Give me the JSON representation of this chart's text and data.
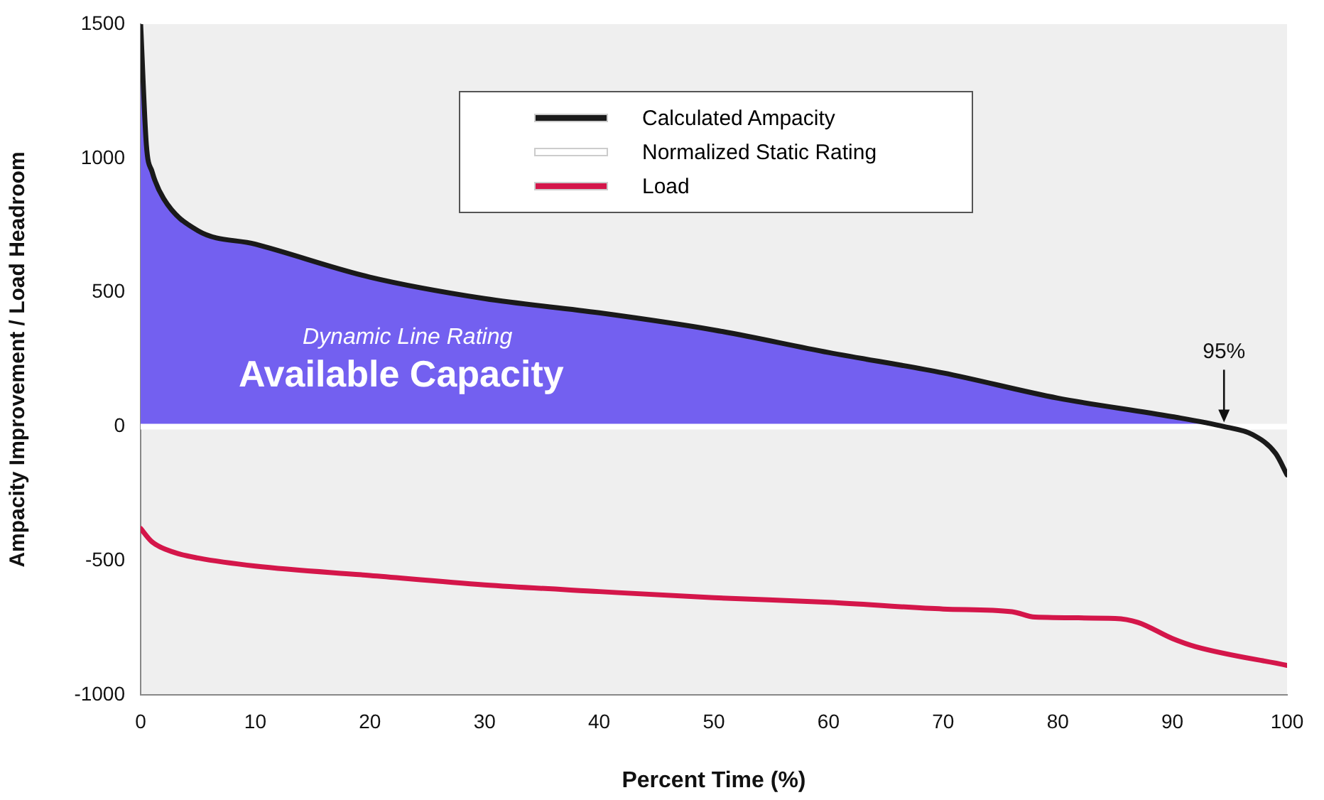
{
  "chart_data": {
    "type": "line",
    "xlabel": "Percent Time (%)",
    "ylabel": "Ampacity Improvement / Load Headroom",
    "xlim": [
      0,
      100
    ],
    "xticks": [
      0,
      10,
      20,
      30,
      40,
      50,
      60,
      70,
      80,
      90,
      100
    ],
    "ylim": [
      -1000,
      1500
    ],
    "yticks": [
      -1000,
      -500,
      0,
      500,
      1000,
      1500
    ],
    "grid": false,
    "legend": "top",
    "marker": "none",
    "line_style": "solid",
    "annotations": [
      "Dynamic Line Rating",
      "Available Capacity",
      {
        "text": "95%",
        "x": 94.5,
        "y": 0
      }
    ],
    "series": [
      {
        "type": "area",
        "color": "#7360f0",
        "x": [
          0,
          0.5,
          1,
          2,
          5,
          10,
          20,
          30,
          40,
          50,
          60,
          70,
          80,
          90,
          94.5
        ],
        "values": [
          1500,
          1050,
          950,
          850,
          730,
          680,
          557,
          477,
          424,
          360,
          276,
          200,
          106,
          37,
          0
        ]
      },
      {
        "name": "Calculated Ampacity",
        "color": "#1a1a1a",
        "x": [
          0,
          0.5,
          1,
          2,
          5,
          10,
          20,
          30,
          40,
          50,
          60,
          70,
          80,
          90,
          94.5,
          97,
          99,
          100
        ],
        "values": [
          1500,
          1050,
          950,
          850,
          730,
          680,
          557,
          477,
          424,
          360,
          276,
          200,
          106,
          37,
          0,
          -30,
          -100,
          -180
        ]
      },
      {
        "name": "Normalized Static Rating",
        "color": "#ffffff",
        "x": [
          0,
          100
        ],
        "values": [
          0,
          0
        ]
      },
      {
        "name": "Load",
        "color": "#d4164a",
        "x": [
          0,
          1,
          3,
          5,
          10,
          20,
          30,
          40,
          50,
          60,
          70,
          76,
          78,
          85,
          87,
          90,
          92,
          100
        ],
        "values": [
          -380,
          -430,
          -470,
          -490,
          -520,
          -555,
          -590,
          -615,
          -638,
          -655,
          -680,
          -690,
          -710,
          -715,
          -730,
          -790,
          -820,
          -890
        ]
      }
    ]
  }
}
